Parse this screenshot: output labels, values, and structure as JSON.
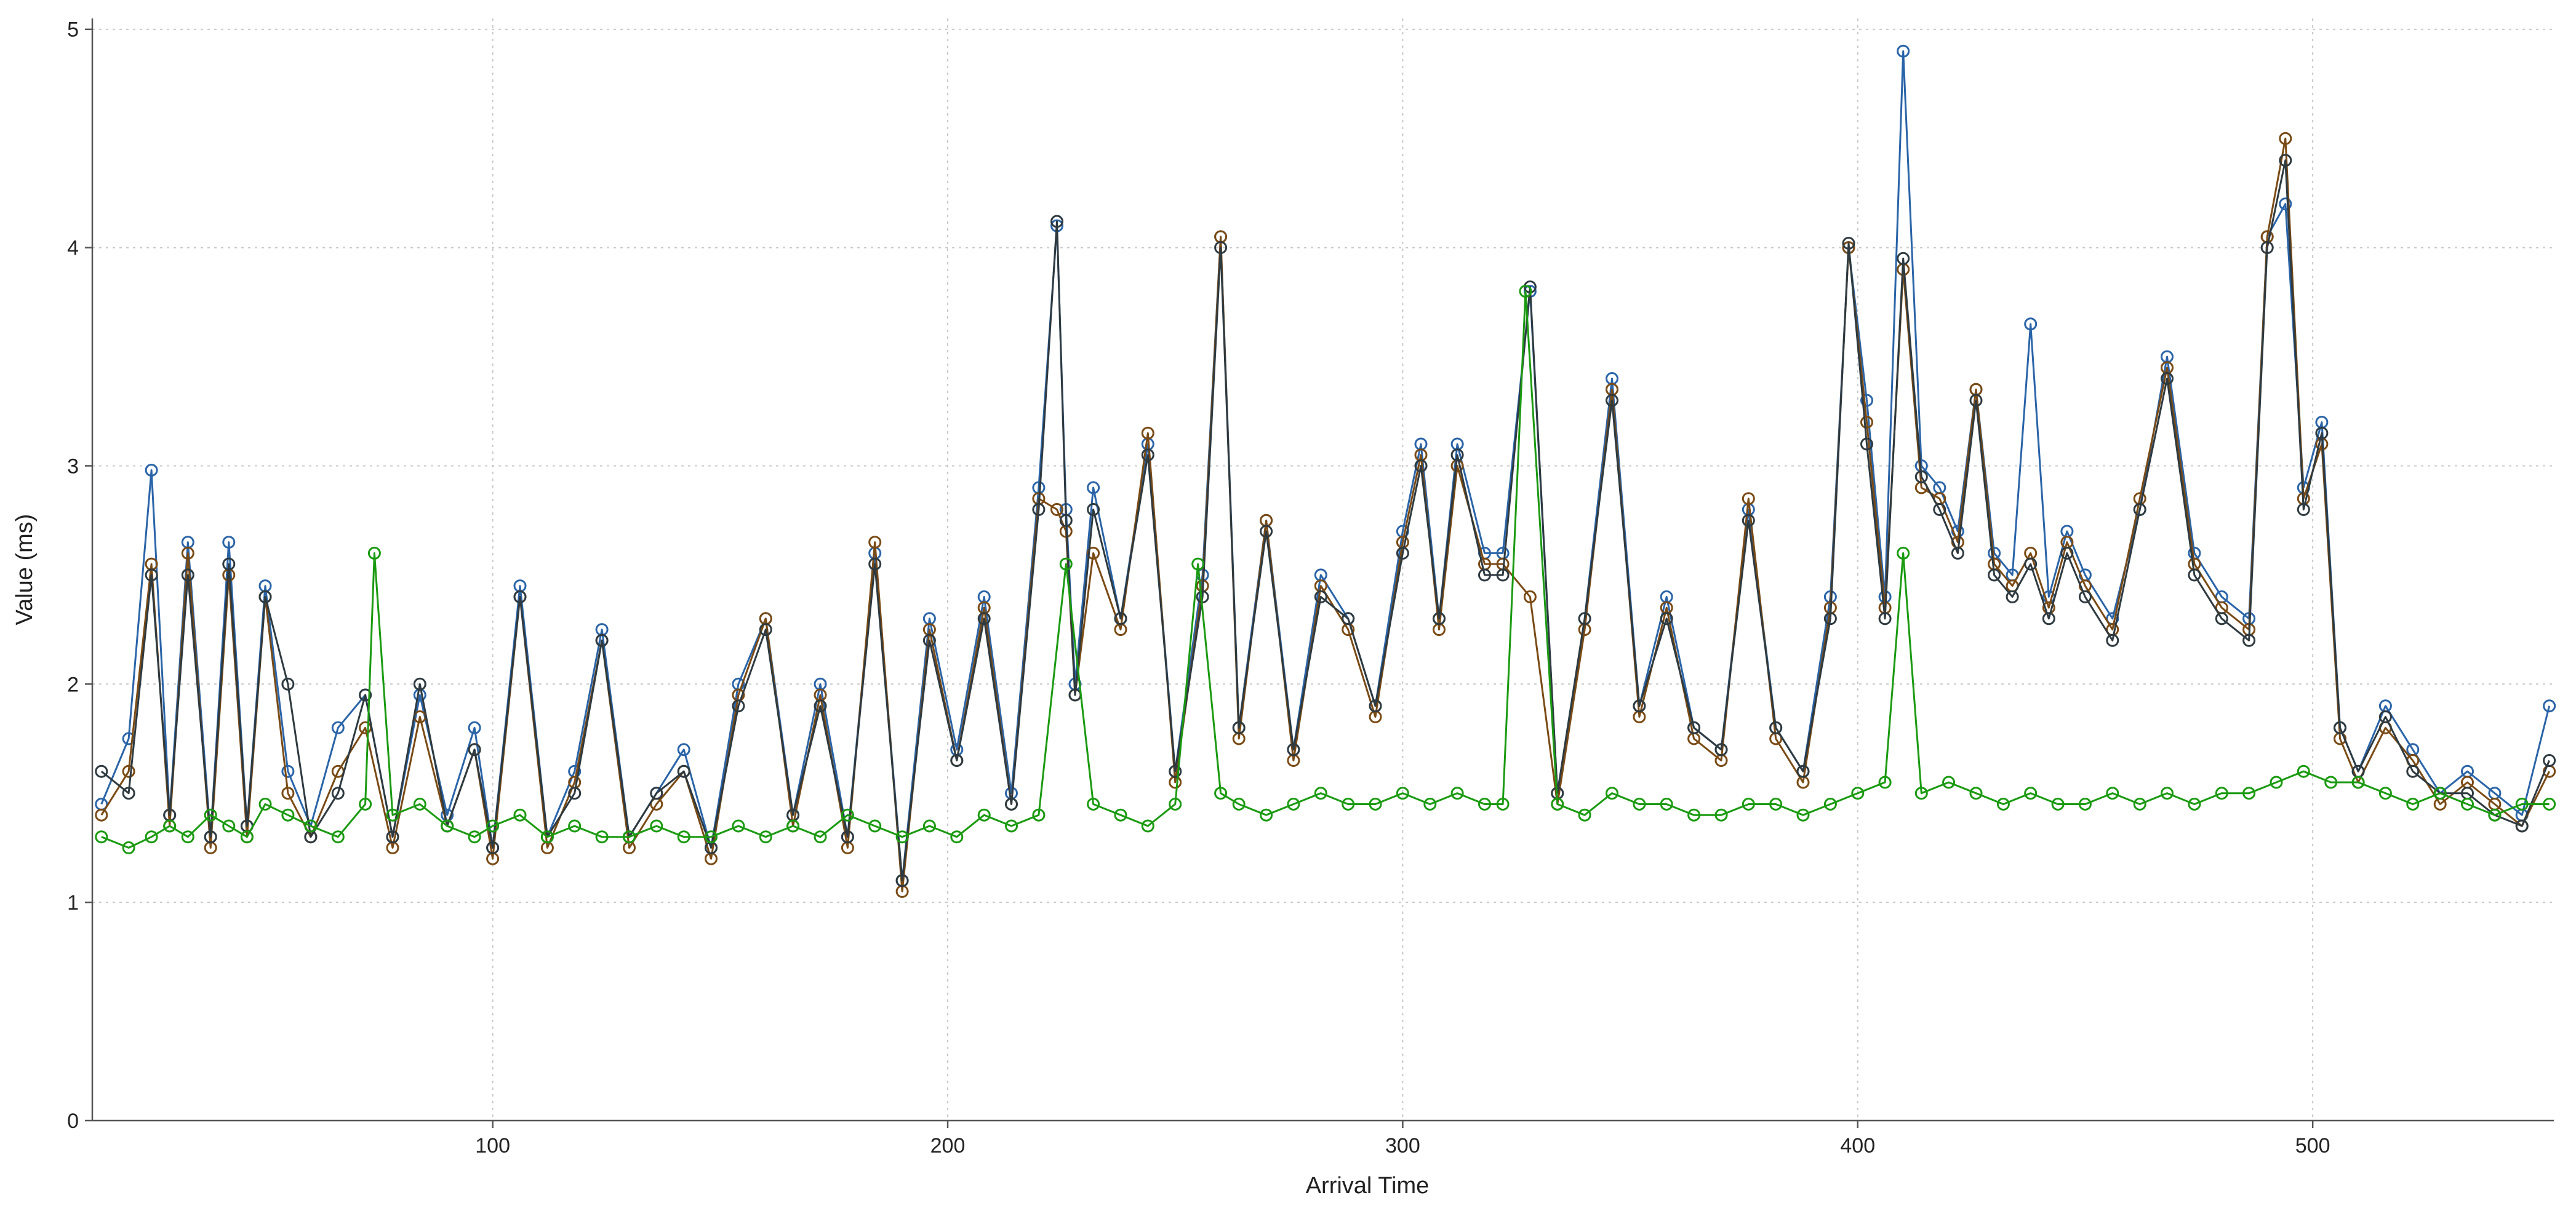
{
  "chart_data": {
    "type": "line",
    "xlabel": "Arrival Time",
    "ylabel": "Value (ms)",
    "xlim": [
      12,
      553
    ],
    "ylim": [
      0,
      5.05
    ],
    "x_ticks": [
      100,
      200,
      300,
      400,
      500
    ],
    "y_ticks": [
      0,
      1,
      2,
      3,
      4,
      5
    ],
    "grid": true,
    "legend": "none",
    "marker": "hollow-circle",
    "series": [
      {
        "color": "#2a64a8",
        "x": [
          14,
          20,
          25,
          29,
          33,
          38,
          42,
          46,
          50,
          55,
          60,
          66,
          72,
          78,
          84,
          90,
          96,
          100,
          106,
          112,
          118,
          124,
          130,
          136,
          142,
          148,
          154,
          160,
          166,
          172,
          178,
          184,
          190,
          196,
          202,
          208,
          214,
          220,
          224,
          226,
          228,
          232,
          238,
          244,
          250,
          256,
          260,
          264,
          270,
          276,
          282,
          288,
          294,
          300,
          304,
          308,
          312,
          318,
          322,
          328,
          334,
          340,
          346,
          352,
          358,
          364,
          370,
          376,
          382,
          388,
          394,
          398,
          402,
          406,
          410,
          414,
          418,
          422,
          426,
          430,
          434,
          438,
          442,
          446,
          450,
          456,
          462,
          468,
          474,
          480,
          486,
          490,
          494,
          498,
          502,
          506,
          510,
          516,
          522,
          528,
          534,
          540,
          546,
          552
        ],
        "values": [
          1.45,
          1.75,
          2.98,
          1.4,
          2.65,
          1.3,
          2.65,
          1.35,
          2.45,
          1.6,
          1.35,
          1.8,
          1.95,
          1.3,
          1.95,
          1.4,
          1.8,
          1.25,
          2.45,
          1.3,
          1.6,
          2.25,
          1.3,
          1.5,
          1.7,
          1.25,
          2.0,
          2.3,
          1.4,
          2.0,
          1.3,
          2.6,
          1.1,
          2.3,
          1.7,
          2.4,
          1.5,
          2.9,
          4.1,
          2.8,
          2.0,
          2.9,
          2.3,
          3.1,
          1.6,
          2.5,
          4.05,
          1.8,
          2.75,
          1.7,
          2.5,
          2.3,
          1.9,
          2.7,
          3.1,
          2.3,
          3.1,
          2.6,
          2.6,
          3.8,
          1.5,
          2.3,
          3.4,
          1.9,
          2.4,
          1.8,
          1.7,
          2.8,
          1.8,
          1.6,
          2.4,
          4.0,
          3.3,
          2.4,
          4.9,
          3.0,
          2.9,
          2.7,
          3.35,
          2.6,
          2.5,
          3.65,
          2.4,
          2.7,
          2.5,
          2.3,
          2.8,
          3.5,
          2.6,
          2.4,
          2.3,
          4.05,
          4.2,
          2.9,
          3.2,
          1.8,
          1.6,
          1.9,
          1.7,
          1.5,
          1.6,
          1.5,
          1.4,
          1.9
        ]
      },
      {
        "color": "#7a4a14",
        "x": [
          14,
          20,
          25,
          29,
          33,
          38,
          42,
          46,
          50,
          55,
          60,
          66,
          72,
          78,
          84,
          90,
          96,
          100,
          106,
          112,
          118,
          124,
          130,
          136,
          142,
          148,
          154,
          160,
          166,
          172,
          178,
          184,
          190,
          196,
          202,
          208,
          214,
          220,
          224,
          226,
          228,
          232,
          238,
          244,
          250,
          256,
          260,
          264,
          270,
          276,
          282,
          288,
          294,
          300,
          304,
          308,
          312,
          318,
          322,
          328,
          334,
          340,
          346,
          352,
          358,
          364,
          370,
          376,
          382,
          388,
          394,
          398,
          402,
          406,
          410,
          414,
          418,
          422,
          426,
          430,
          434,
          438,
          442,
          446,
          450,
          456,
          462,
          468,
          474,
          480,
          486,
          490,
          494,
          498,
          502,
          506,
          510,
          516,
          522,
          528,
          534,
          540,
          546,
          552
        ],
        "values": [
          1.4,
          1.6,
          2.55,
          1.35,
          2.6,
          1.25,
          2.5,
          1.3,
          2.4,
          1.5,
          1.3,
          1.6,
          1.8,
          1.25,
          1.85,
          1.35,
          1.7,
          1.2,
          2.4,
          1.25,
          1.55,
          2.2,
          1.25,
          1.45,
          1.6,
          1.2,
          1.95,
          2.3,
          1.35,
          1.95,
          1.25,
          2.65,
          1.05,
          2.25,
          1.65,
          2.35,
          1.45,
          2.85,
          2.8,
          2.7,
          1.95,
          2.6,
          2.25,
          3.15,
          1.55,
          2.45,
          4.05,
          1.75,
          2.75,
          1.65,
          2.45,
          2.25,
          1.85,
          2.65,
          3.05,
          2.25,
          3.0,
          2.55,
          2.55,
          2.4,
          1.45,
          2.25,
          3.35,
          1.85,
          2.35,
          1.75,
          1.65,
          2.85,
          1.75,
          1.55,
          2.35,
          4.0,
          3.2,
          2.35,
          3.9,
          2.9,
          2.85,
          2.65,
          3.35,
          2.55,
          2.45,
          2.6,
          2.35,
          2.65,
          2.45,
          2.25,
          2.85,
          3.45,
          2.55,
          2.35,
          2.25,
          4.05,
          4.5,
          2.85,
          3.1,
          1.75,
          1.55,
          1.8,
          1.65,
          1.45,
          1.55,
          1.45,
          1.35,
          1.6
        ]
      },
      {
        "color": "#2e3a40",
        "x": [
          14,
          20,
          25,
          29,
          33,
          38,
          42,
          46,
          50,
          55,
          60,
          66,
          72,
          78,
          84,
          90,
          96,
          100,
          106,
          112,
          118,
          124,
          130,
          136,
          142,
          148,
          154,
          160,
          166,
          172,
          178,
          184,
          190,
          196,
          202,
          208,
          214,
          220,
          224,
          226,
          228,
          232,
          238,
          244,
          250,
          256,
          260,
          264,
          270,
          276,
          282,
          288,
          294,
          300,
          304,
          308,
          312,
          318,
          322,
          328,
          334,
          340,
          346,
          352,
          358,
          364,
          370,
          376,
          382,
          388,
          394,
          398,
          402,
          406,
          410,
          414,
          418,
          422,
          426,
          430,
          434,
          438,
          442,
          446,
          450,
          456,
          462,
          468,
          474,
          480,
          486,
          490,
          494,
          498,
          502,
          506,
          510,
          516,
          522,
          528,
          534,
          540,
          546,
          552
        ],
        "values": [
          1.6,
          1.5,
          2.5,
          1.4,
          2.5,
          1.3,
          2.55,
          1.35,
          2.4,
          2.0,
          1.3,
          1.5,
          1.95,
          1.3,
          2.0,
          1.35,
          1.7,
          1.25,
          2.4,
          1.3,
          1.5,
          2.2,
          1.3,
          1.5,
          1.6,
          1.25,
          1.9,
          2.25,
          1.4,
          1.9,
          1.3,
          2.55,
          1.1,
          2.2,
          1.65,
          2.3,
          1.45,
          2.8,
          4.12,
          2.75,
          1.95,
          2.8,
          2.3,
          3.05,
          1.6,
          2.4,
          4.0,
          1.8,
          2.7,
          1.7,
          2.4,
          2.3,
          1.9,
          2.6,
          3.0,
          2.3,
          3.05,
          2.5,
          2.5,
          3.82,
          1.5,
          2.3,
          3.3,
          1.9,
          2.3,
          1.8,
          1.7,
          2.75,
          1.8,
          1.6,
          2.3,
          4.02,
          3.1,
          2.3,
          3.95,
          2.95,
          2.8,
          2.6,
          3.3,
          2.5,
          2.4,
          2.55,
          2.3,
          2.6,
          2.4,
          2.2,
          2.8,
          3.4,
          2.5,
          2.3,
          2.2,
          4.0,
          4.4,
          2.8,
          3.15,
          1.8,
          1.6,
          1.85,
          1.6,
          1.5,
          1.5,
          1.4,
          1.35,
          1.65
        ]
      },
      {
        "color": "#1a9a10",
        "x": [
          14,
          20,
          25,
          29,
          33,
          38,
          42,
          46,
          50,
          55,
          60,
          66,
          72,
          74,
          78,
          84,
          90,
          96,
          100,
          106,
          112,
          118,
          124,
          130,
          136,
          142,
          148,
          154,
          160,
          166,
          172,
          178,
          184,
          190,
          196,
          202,
          208,
          214,
          220,
          226,
          232,
          238,
          244,
          250,
          255,
          260,
          264,
          270,
          276,
          282,
          288,
          294,
          300,
          306,
          312,
          318,
          322,
          327,
          334,
          340,
          346,
          352,
          358,
          364,
          370,
          376,
          382,
          388,
          394,
          400,
          406,
          410,
          414,
          420,
          426,
          432,
          438,
          444,
          450,
          456,
          462,
          468,
          474,
          480,
          486,
          492,
          498,
          504,
          510,
          516,
          522,
          528,
          534,
          540,
          546,
          552
        ],
        "values": [
          1.3,
          1.25,
          1.3,
          1.35,
          1.3,
          1.4,
          1.35,
          1.3,
          1.45,
          1.4,
          1.35,
          1.3,
          1.45,
          2.6,
          1.4,
          1.45,
          1.35,
          1.3,
          1.35,
          1.4,
          1.3,
          1.35,
          1.3,
          1.3,
          1.35,
          1.3,
          1.3,
          1.35,
          1.3,
          1.35,
          1.3,
          1.4,
          1.35,
          1.3,
          1.35,
          1.3,
          1.4,
          1.35,
          1.4,
          2.55,
          1.45,
          1.4,
          1.35,
          1.45,
          2.55,
          1.5,
          1.45,
          1.4,
          1.45,
          1.5,
          1.45,
          1.45,
          1.5,
          1.45,
          1.5,
          1.45,
          1.45,
          3.8,
          1.45,
          1.4,
          1.5,
          1.45,
          1.45,
          1.4,
          1.4,
          1.45,
          1.45,
          1.4,
          1.45,
          1.5,
          1.55,
          2.6,
          1.5,
          1.55,
          1.5,
          1.45,
          1.5,
          1.45,
          1.45,
          1.5,
          1.45,
          1.5,
          1.45,
          1.5,
          1.5,
          1.55,
          1.6,
          1.55,
          1.55,
          1.5,
          1.45,
          1.5,
          1.45,
          1.4,
          1.45,
          1.45
        ]
      }
    ]
  }
}
